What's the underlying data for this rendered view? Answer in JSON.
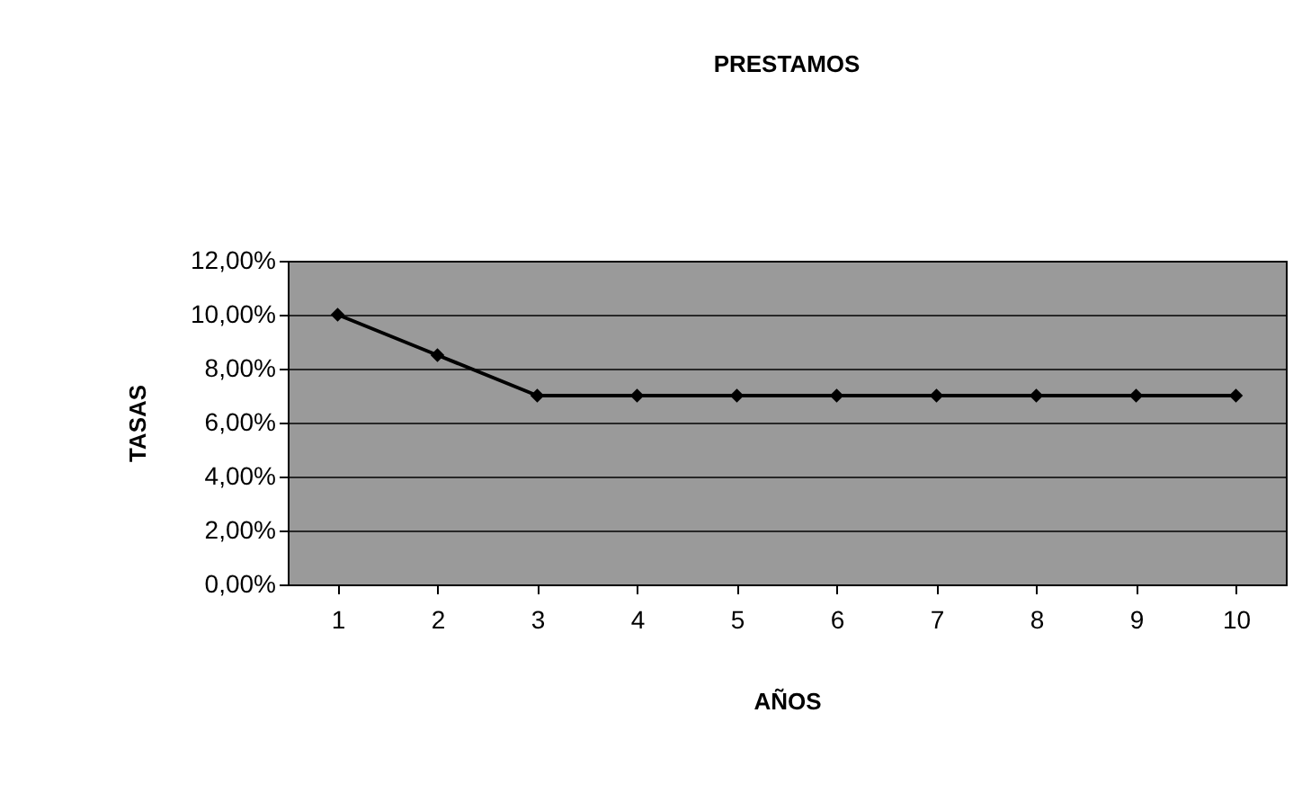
{
  "chart_data": {
    "type": "line",
    "title": "PRESTAMOS",
    "xlabel": "AÑOS",
    "ylabel": "TASAS",
    "categories": [
      "1",
      "2",
      "3",
      "4",
      "5",
      "6",
      "7",
      "8",
      "9",
      "10"
    ],
    "series": [
      {
        "color": "#000000",
        "values": [
          10,
          8.5,
          7,
          7,
          7,
          7,
          7,
          7,
          7,
          7
        ]
      }
    ],
    "ylim": [
      0,
      12
    ],
    "yticks": [
      {
        "value": 0,
        "label": "0,00%"
      },
      {
        "value": 2,
        "label": "2,00%"
      },
      {
        "value": 4,
        "label": "4,00%"
      },
      {
        "value": 6,
        "label": "6,00%"
      },
      {
        "value": 8,
        "label": "8,00%"
      },
      {
        "value": 10,
        "label": "10,00%"
      },
      {
        "value": 12,
        "label": "12,00%"
      }
    ],
    "grid": "y",
    "marker": "diamond",
    "line_style": "solid"
  }
}
